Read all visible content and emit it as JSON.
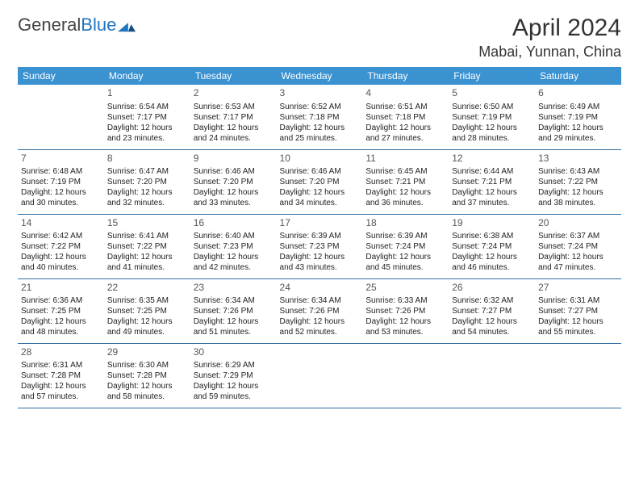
{
  "logo": {
    "text1": "General",
    "text2": "Blue"
  },
  "title": "April 2024",
  "location": "Mabai, Yunnan, China",
  "colors": {
    "header_bg": "#3b92d1",
    "header_text": "#ffffff",
    "row_border": "#2f6ea3",
    "logo_blue": "#2176c0",
    "text": "#222222",
    "daynum": "#555555",
    "background": "#ffffff"
  },
  "fonts": {
    "base": "Arial",
    "title_size": 30,
    "location_size": 18,
    "dayhead_size": 12,
    "cell_size": 10
  },
  "dayHeaders": [
    "Sunday",
    "Monday",
    "Tuesday",
    "Wednesday",
    "Thursday",
    "Friday",
    "Saturday"
  ],
  "weeks": [
    [
      null,
      {
        "d": "1",
        "sr": "Sunrise: 6:54 AM",
        "ss": "Sunset: 7:17 PM",
        "dl1": "Daylight: 12 hours",
        "dl2": "and 23 minutes."
      },
      {
        "d": "2",
        "sr": "Sunrise: 6:53 AM",
        "ss": "Sunset: 7:17 PM",
        "dl1": "Daylight: 12 hours",
        "dl2": "and 24 minutes."
      },
      {
        "d": "3",
        "sr": "Sunrise: 6:52 AM",
        "ss": "Sunset: 7:18 PM",
        "dl1": "Daylight: 12 hours",
        "dl2": "and 25 minutes."
      },
      {
        "d": "4",
        "sr": "Sunrise: 6:51 AM",
        "ss": "Sunset: 7:18 PM",
        "dl1": "Daylight: 12 hours",
        "dl2": "and 27 minutes."
      },
      {
        "d": "5",
        "sr": "Sunrise: 6:50 AM",
        "ss": "Sunset: 7:19 PM",
        "dl1": "Daylight: 12 hours",
        "dl2": "and 28 minutes."
      },
      {
        "d": "6",
        "sr": "Sunrise: 6:49 AM",
        "ss": "Sunset: 7:19 PM",
        "dl1": "Daylight: 12 hours",
        "dl2": "and 29 minutes."
      }
    ],
    [
      {
        "d": "7",
        "sr": "Sunrise: 6:48 AM",
        "ss": "Sunset: 7:19 PM",
        "dl1": "Daylight: 12 hours",
        "dl2": "and 30 minutes."
      },
      {
        "d": "8",
        "sr": "Sunrise: 6:47 AM",
        "ss": "Sunset: 7:20 PM",
        "dl1": "Daylight: 12 hours",
        "dl2": "and 32 minutes."
      },
      {
        "d": "9",
        "sr": "Sunrise: 6:46 AM",
        "ss": "Sunset: 7:20 PM",
        "dl1": "Daylight: 12 hours",
        "dl2": "and 33 minutes."
      },
      {
        "d": "10",
        "sr": "Sunrise: 6:46 AM",
        "ss": "Sunset: 7:20 PM",
        "dl1": "Daylight: 12 hours",
        "dl2": "and 34 minutes."
      },
      {
        "d": "11",
        "sr": "Sunrise: 6:45 AM",
        "ss": "Sunset: 7:21 PM",
        "dl1": "Daylight: 12 hours",
        "dl2": "and 36 minutes."
      },
      {
        "d": "12",
        "sr": "Sunrise: 6:44 AM",
        "ss": "Sunset: 7:21 PM",
        "dl1": "Daylight: 12 hours",
        "dl2": "and 37 minutes."
      },
      {
        "d": "13",
        "sr": "Sunrise: 6:43 AM",
        "ss": "Sunset: 7:22 PM",
        "dl1": "Daylight: 12 hours",
        "dl2": "and 38 minutes."
      }
    ],
    [
      {
        "d": "14",
        "sr": "Sunrise: 6:42 AM",
        "ss": "Sunset: 7:22 PM",
        "dl1": "Daylight: 12 hours",
        "dl2": "and 40 minutes."
      },
      {
        "d": "15",
        "sr": "Sunrise: 6:41 AM",
        "ss": "Sunset: 7:22 PM",
        "dl1": "Daylight: 12 hours",
        "dl2": "and 41 minutes."
      },
      {
        "d": "16",
        "sr": "Sunrise: 6:40 AM",
        "ss": "Sunset: 7:23 PM",
        "dl1": "Daylight: 12 hours",
        "dl2": "and 42 minutes."
      },
      {
        "d": "17",
        "sr": "Sunrise: 6:39 AM",
        "ss": "Sunset: 7:23 PM",
        "dl1": "Daylight: 12 hours",
        "dl2": "and 43 minutes."
      },
      {
        "d": "18",
        "sr": "Sunrise: 6:39 AM",
        "ss": "Sunset: 7:24 PM",
        "dl1": "Daylight: 12 hours",
        "dl2": "and 45 minutes."
      },
      {
        "d": "19",
        "sr": "Sunrise: 6:38 AM",
        "ss": "Sunset: 7:24 PM",
        "dl1": "Daylight: 12 hours",
        "dl2": "and 46 minutes."
      },
      {
        "d": "20",
        "sr": "Sunrise: 6:37 AM",
        "ss": "Sunset: 7:24 PM",
        "dl1": "Daylight: 12 hours",
        "dl2": "and 47 minutes."
      }
    ],
    [
      {
        "d": "21",
        "sr": "Sunrise: 6:36 AM",
        "ss": "Sunset: 7:25 PM",
        "dl1": "Daylight: 12 hours",
        "dl2": "and 48 minutes."
      },
      {
        "d": "22",
        "sr": "Sunrise: 6:35 AM",
        "ss": "Sunset: 7:25 PM",
        "dl1": "Daylight: 12 hours",
        "dl2": "and 49 minutes."
      },
      {
        "d": "23",
        "sr": "Sunrise: 6:34 AM",
        "ss": "Sunset: 7:26 PM",
        "dl1": "Daylight: 12 hours",
        "dl2": "and 51 minutes."
      },
      {
        "d": "24",
        "sr": "Sunrise: 6:34 AM",
        "ss": "Sunset: 7:26 PM",
        "dl1": "Daylight: 12 hours",
        "dl2": "and 52 minutes."
      },
      {
        "d": "25",
        "sr": "Sunrise: 6:33 AM",
        "ss": "Sunset: 7:26 PM",
        "dl1": "Daylight: 12 hours",
        "dl2": "and 53 minutes."
      },
      {
        "d": "26",
        "sr": "Sunrise: 6:32 AM",
        "ss": "Sunset: 7:27 PM",
        "dl1": "Daylight: 12 hours",
        "dl2": "and 54 minutes."
      },
      {
        "d": "27",
        "sr": "Sunrise: 6:31 AM",
        "ss": "Sunset: 7:27 PM",
        "dl1": "Daylight: 12 hours",
        "dl2": "and 55 minutes."
      }
    ],
    [
      {
        "d": "28",
        "sr": "Sunrise: 6:31 AM",
        "ss": "Sunset: 7:28 PM",
        "dl1": "Daylight: 12 hours",
        "dl2": "and 57 minutes."
      },
      {
        "d": "29",
        "sr": "Sunrise: 6:30 AM",
        "ss": "Sunset: 7:28 PM",
        "dl1": "Daylight: 12 hours",
        "dl2": "and 58 minutes."
      },
      {
        "d": "30",
        "sr": "Sunrise: 6:29 AM",
        "ss": "Sunset: 7:29 PM",
        "dl1": "Daylight: 12 hours",
        "dl2": "and 59 minutes."
      },
      null,
      null,
      null,
      null
    ]
  ]
}
